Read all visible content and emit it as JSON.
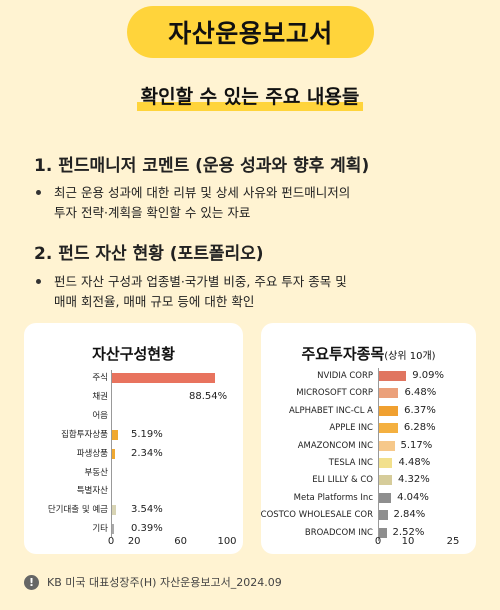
{
  "title": "자산운용보고서",
  "subtitle": "확인할 수 있는 주요 내용들",
  "sections": [
    {
      "heading": "1. 펀드매니저 코멘트 (운용 성과와 향후 계획)",
      "bullet_lines": [
        "최근 운용 성과에 대한 리뷰 및 상세 사유와 펀드매니저의",
        "투자 전략·계획을 확인할 수 있는 자료"
      ]
    },
    {
      "heading": "2. 펀드 자산 현황 (포트폴리오)",
      "bullet_lines": [
        "펀드 자산 구성과 업종별·국가별 비중, 주요 투자 종목 및",
        "매매 회전율, 매매 규모 등에 대한 확인"
      ]
    }
  ],
  "asset_card": {
    "title": "자산구성현황"
  },
  "holdings_card": {
    "title": "주요투자종목",
    "title_suffix": "(상위 10개)"
  },
  "chart_data": [
    {
      "type": "bar",
      "orientation": "horizontal",
      "title": "자산구성현황",
      "categories": [
        "주식",
        "채권",
        "어음",
        "집합투자상품",
        "파생상품",
        "부동산",
        "특별자산",
        "단기대출 및 예금",
        "기타"
      ],
      "values": [
        88.54,
        0,
        0,
        5.19,
        2.34,
        0,
        0,
        3.54,
        0.39
      ],
      "value_labels": [
        "88.54%",
        "",
        "",
        "5.19%",
        "2.34%",
        "",
        "",
        "3.54%",
        "0.39%"
      ],
      "colors": [
        "#E8735E",
        "#E8735E",
        "#E8735E",
        "#F0A830",
        "#F0A830",
        "#F0A830",
        "#F0A830",
        "#D8D4B4",
        "#AAAAAA"
      ],
      "xlim": [
        0,
        100
      ],
      "xticks": [
        "0",
        "20",
        "60",
        "100"
      ]
    },
    {
      "type": "bar",
      "orientation": "horizontal",
      "title": "주요투자종목(상위 10개)",
      "categories": [
        "NVIDIA CORP",
        "MICROSOFT CORP",
        "ALPHABET INC-CL A",
        "APPLE INC",
        "AMAZONCOM INC",
        "TESLA INC",
        "ELI LILLY & CO",
        "Meta Platforms Inc",
        "COSTCO WHOLESALE COR",
        "BROADCOM INC"
      ],
      "values": [
        9.09,
        6.48,
        6.37,
        6.28,
        5.17,
        4.48,
        4.32,
        4.04,
        2.84,
        2.52
      ],
      "value_labels": [
        "9.09%",
        "6.48%",
        "6.37%",
        "6.28%",
        "5.17%",
        "4.48%",
        "4.32%",
        "4.04%",
        "2.84%",
        "2.52%"
      ],
      "colors": [
        "#E07560",
        "#EBA07A",
        "#F0A030",
        "#F4B040",
        "#F6C88A",
        "#F2E08C",
        "#D6CC9A",
        "#8E8E8E",
        "#8E8E8E",
        "#8E8E8E"
      ],
      "xlim": [
        0,
        25
      ],
      "xticks": [
        "0",
        "10",
        "25"
      ]
    }
  ],
  "footer": {
    "icon": "exclamation-icon",
    "text": "KB 미국 대표성장주(H) 자산운용보고서_2024.09"
  }
}
